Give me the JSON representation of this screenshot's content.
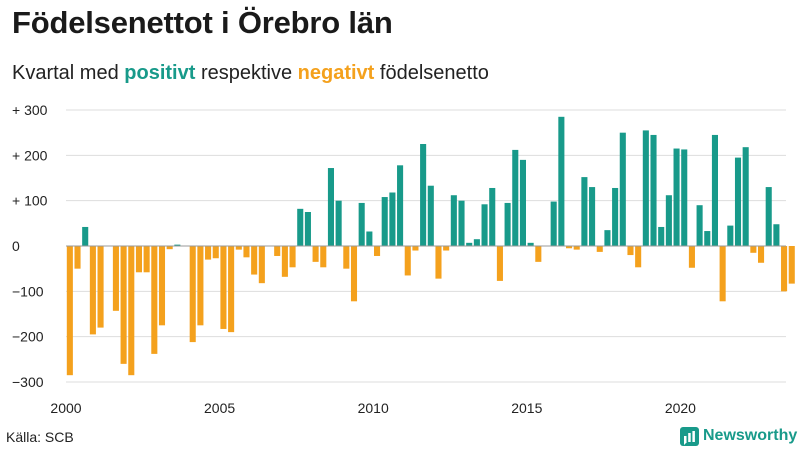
{
  "title": "Födelsenettot i Örebro län",
  "subtitle": {
    "prefix": "Kvartal med ",
    "positive_word": "positivt",
    "middle": " respektive ",
    "negative_word": "negativt",
    "suffix": " födelsenetto"
  },
  "source": "Källa: SCB",
  "brand": "Newsworthy",
  "colors": {
    "positive": "#189a8a",
    "negative": "#f4a11d",
    "grid": "#dddddd",
    "axis": "#999999"
  },
  "chart_data": {
    "type": "bar",
    "x_start_year": 2000,
    "periodicity": "quarterly",
    "ylim": [
      -300,
      300
    ],
    "yticks": [
      {
        "value": 300,
        "label": "+ 300"
      },
      {
        "value": 200,
        "label": "+ 200"
      },
      {
        "value": 100,
        "label": "+ 100"
      },
      {
        "value": 0,
        "label": "0"
      },
      {
        "value": -100,
        "label": "−100"
      },
      {
        "value": -200,
        "label": "−200"
      },
      {
        "value": -300,
        "label": "−300"
      }
    ],
    "xticks": [
      "2000",
      "2005",
      "2010",
      "2015",
      "2020"
    ],
    "grid": true,
    "values": [
      -285,
      -50,
      42,
      -195,
      -180,
      0,
      -143,
      -260,
      -285,
      -58,
      -58,
      -238,
      -175,
      -7,
      3,
      0,
      -212,
      -175,
      -30,
      -27,
      -183,
      -190,
      -8,
      -25,
      -63,
      -82,
      0,
      -22,
      -68,
      -47,
      82,
      75,
      -35,
      -47,
      172,
      100,
      -50,
      -122,
      95,
      32,
      -22,
      108,
      118,
      178,
      -65,
      -10,
      225,
      133,
      -72,
      -10,
      112,
      100,
      7,
      15,
      92,
      128,
      -77,
      95,
      212,
      190,
      7,
      -35,
      0,
      98,
      285,
      -5,
      -8,
      152,
      130,
      -13,
      35,
      128,
      250,
      -20,
      -47,
      255,
      245,
      42,
      112,
      215,
      213,
      -48,
      90,
      33,
      245,
      -122,
      45,
      195,
      218,
      -15,
      -37,
      130,
      48,
      -100,
      -83
    ]
  }
}
